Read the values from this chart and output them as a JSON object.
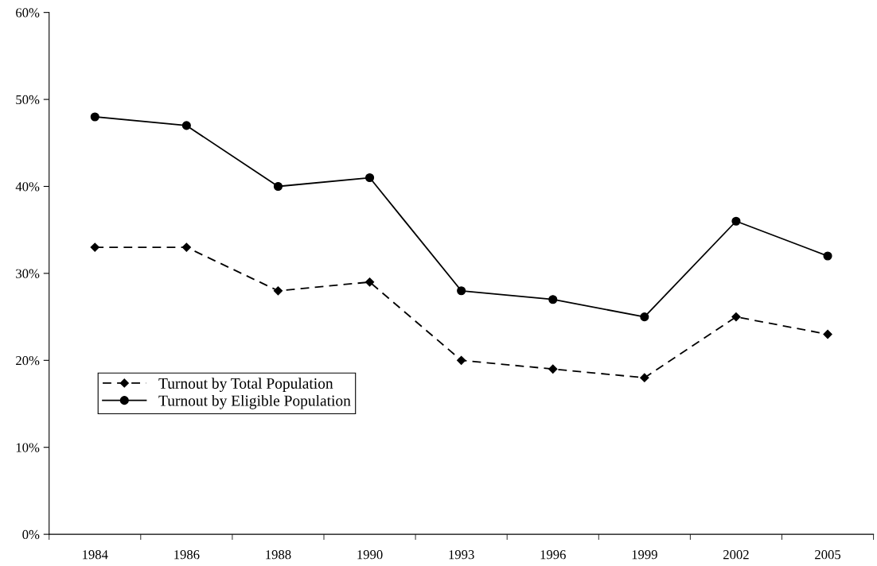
{
  "chart_data": {
    "type": "line",
    "categories": [
      "1984",
      "1986",
      "1988",
      "1990",
      "1993",
      "1996",
      "1999",
      "2002",
      "2005"
    ],
    "series": [
      {
        "name": "Turnout by Total Population",
        "color": "#000000",
        "marker": "diamond",
        "line_style": "dashed",
        "values": [
          33,
          33,
          28,
          29,
          20,
          19,
          18,
          25,
          23
        ]
      },
      {
        "name": "Turnout by Eligible Population",
        "color": "#000000",
        "marker": "circle",
        "line_style": "solid",
        "values": [
          48,
          47,
          40,
          41,
          28,
          27,
          25,
          36,
          32
        ]
      }
    ],
    "ylim": [
      0,
      60
    ],
    "yticks": [
      {
        "value": 0,
        "label": "0%"
      },
      {
        "value": 10,
        "label": "10%"
      },
      {
        "value": 20,
        "label": "20%"
      },
      {
        "value": 30,
        "label": "30%"
      },
      {
        "value": 40,
        "label": "40%"
      },
      {
        "value": 50,
        "label": "50%"
      },
      {
        "value": 60,
        "label": "60%"
      }
    ],
    "grid": false,
    "legend": "left"
  }
}
